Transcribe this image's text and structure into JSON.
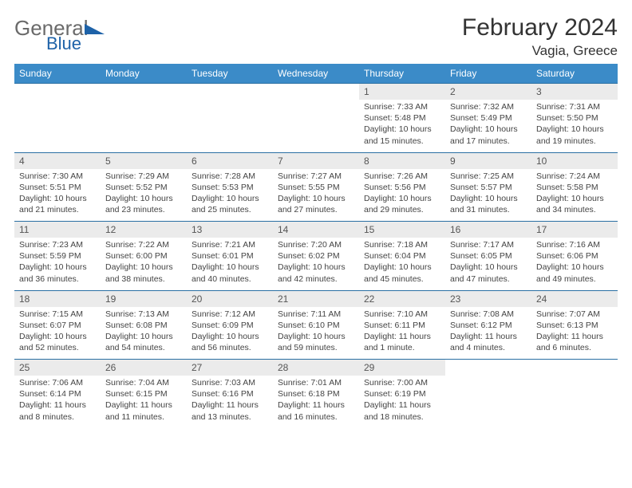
{
  "logo": {
    "word1": "General",
    "word2": "Blue"
  },
  "title": "February 2024",
  "location": "Vagia, Greece",
  "colors": {
    "header_bg": "#3b8bc8",
    "header_text": "#ffffff",
    "daynum_bg": "#ebebeb",
    "border": "#2a6fa3",
    "text": "#333333",
    "logo_gray": "#6a6a6a",
    "logo_blue": "#1e62a8"
  },
  "day_headers": [
    "Sunday",
    "Monday",
    "Tuesday",
    "Wednesday",
    "Thursday",
    "Friday",
    "Saturday"
  ],
  "weeks": [
    [
      null,
      null,
      null,
      null,
      {
        "n": "1",
        "sr": "7:33 AM",
        "ss": "5:48 PM",
        "dl": "10 hours and 15 minutes."
      },
      {
        "n": "2",
        "sr": "7:32 AM",
        "ss": "5:49 PM",
        "dl": "10 hours and 17 minutes."
      },
      {
        "n": "3",
        "sr": "7:31 AM",
        "ss": "5:50 PM",
        "dl": "10 hours and 19 minutes."
      }
    ],
    [
      {
        "n": "4",
        "sr": "7:30 AM",
        "ss": "5:51 PM",
        "dl": "10 hours and 21 minutes."
      },
      {
        "n": "5",
        "sr": "7:29 AM",
        "ss": "5:52 PM",
        "dl": "10 hours and 23 minutes."
      },
      {
        "n": "6",
        "sr": "7:28 AM",
        "ss": "5:53 PM",
        "dl": "10 hours and 25 minutes."
      },
      {
        "n": "7",
        "sr": "7:27 AM",
        "ss": "5:55 PM",
        "dl": "10 hours and 27 minutes."
      },
      {
        "n": "8",
        "sr": "7:26 AM",
        "ss": "5:56 PM",
        "dl": "10 hours and 29 minutes."
      },
      {
        "n": "9",
        "sr": "7:25 AM",
        "ss": "5:57 PM",
        "dl": "10 hours and 31 minutes."
      },
      {
        "n": "10",
        "sr": "7:24 AM",
        "ss": "5:58 PM",
        "dl": "10 hours and 34 minutes."
      }
    ],
    [
      {
        "n": "11",
        "sr": "7:23 AM",
        "ss": "5:59 PM",
        "dl": "10 hours and 36 minutes."
      },
      {
        "n": "12",
        "sr": "7:22 AM",
        "ss": "6:00 PM",
        "dl": "10 hours and 38 minutes."
      },
      {
        "n": "13",
        "sr": "7:21 AM",
        "ss": "6:01 PM",
        "dl": "10 hours and 40 minutes."
      },
      {
        "n": "14",
        "sr": "7:20 AM",
        "ss": "6:02 PM",
        "dl": "10 hours and 42 minutes."
      },
      {
        "n": "15",
        "sr": "7:18 AM",
        "ss": "6:04 PM",
        "dl": "10 hours and 45 minutes."
      },
      {
        "n": "16",
        "sr": "7:17 AM",
        "ss": "6:05 PM",
        "dl": "10 hours and 47 minutes."
      },
      {
        "n": "17",
        "sr": "7:16 AM",
        "ss": "6:06 PM",
        "dl": "10 hours and 49 minutes."
      }
    ],
    [
      {
        "n": "18",
        "sr": "7:15 AM",
        "ss": "6:07 PM",
        "dl": "10 hours and 52 minutes."
      },
      {
        "n": "19",
        "sr": "7:13 AM",
        "ss": "6:08 PM",
        "dl": "10 hours and 54 minutes."
      },
      {
        "n": "20",
        "sr": "7:12 AM",
        "ss": "6:09 PM",
        "dl": "10 hours and 56 minutes."
      },
      {
        "n": "21",
        "sr": "7:11 AM",
        "ss": "6:10 PM",
        "dl": "10 hours and 59 minutes."
      },
      {
        "n": "22",
        "sr": "7:10 AM",
        "ss": "6:11 PM",
        "dl": "11 hours and 1 minute."
      },
      {
        "n": "23",
        "sr": "7:08 AM",
        "ss": "6:12 PM",
        "dl": "11 hours and 4 minutes."
      },
      {
        "n": "24",
        "sr": "7:07 AM",
        "ss": "6:13 PM",
        "dl": "11 hours and 6 minutes."
      }
    ],
    [
      {
        "n": "25",
        "sr": "7:06 AM",
        "ss": "6:14 PM",
        "dl": "11 hours and 8 minutes."
      },
      {
        "n": "26",
        "sr": "7:04 AM",
        "ss": "6:15 PM",
        "dl": "11 hours and 11 minutes."
      },
      {
        "n": "27",
        "sr": "7:03 AM",
        "ss": "6:16 PM",
        "dl": "11 hours and 13 minutes."
      },
      {
        "n": "28",
        "sr": "7:01 AM",
        "ss": "6:18 PM",
        "dl": "11 hours and 16 minutes."
      },
      {
        "n": "29",
        "sr": "7:00 AM",
        "ss": "6:19 PM",
        "dl": "11 hours and 18 minutes."
      },
      null,
      null
    ]
  ],
  "labels": {
    "sunrise": "Sunrise:",
    "sunset": "Sunset:",
    "daylight": "Daylight:"
  }
}
